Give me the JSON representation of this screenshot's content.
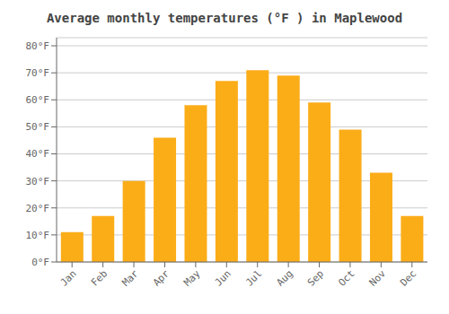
{
  "chart_data": {
    "type": "bar",
    "title": "Average monthly temperatures (°F ) in Maplewood",
    "categories": [
      "Jan",
      "Feb",
      "Mar",
      "Apr",
      "May",
      "Jun",
      "Jul",
      "Aug",
      "Sep",
      "Oct",
      "Nov",
      "Dec"
    ],
    "values": [
      11,
      17,
      30,
      46,
      58,
      67,
      71,
      69,
      59,
      49,
      33,
      17
    ],
    "color": "#FBAD18",
    "ylim": [
      0,
      83
    ],
    "yticks": [
      {
        "value": 0,
        "label": "0°F"
      },
      {
        "value": 10,
        "label": "10°F"
      },
      {
        "value": 20,
        "label": "20°F"
      },
      {
        "value": 30,
        "label": "30°F"
      },
      {
        "value": 40,
        "label": "40°F"
      },
      {
        "value": 50,
        "label": "50°F"
      },
      {
        "value": 60,
        "label": "60°F"
      },
      {
        "value": 70,
        "label": "70°F"
      },
      {
        "value": 80,
        "label": "80°F"
      }
    ],
    "grid": true
  }
}
